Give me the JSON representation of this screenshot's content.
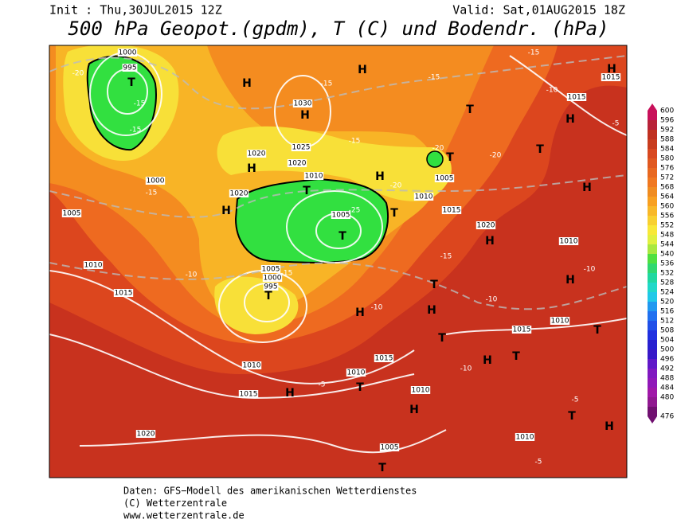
{
  "header": {
    "init": "Init : Thu,30JUL2015 12Z",
    "valid": "Valid: Sat,01AUG2015 18Z",
    "title": "500 hPa Geopot.(gpdm), T (C) und Bodendr. (hPa)"
  },
  "legend": {
    "levels": [
      600,
      596,
      592,
      588,
      584,
      580,
      576,
      572,
      568,
      564,
      560,
      556,
      552,
      548,
      544,
      540,
      536,
      532,
      528,
      524,
      520,
      516,
      512,
      508,
      504,
      500,
      496,
      492,
      488,
      484,
      480,
      476
    ]
  },
  "map": {
    "labels": [
      "1000",
      "995",
      "T",
      "-15",
      "-15",
      "-20",
      "H",
      "H",
      "1030",
      "H",
      "-15",
      "-15",
      "1025",
      "1020",
      "H",
      "1020",
      "1010",
      "T",
      "1020",
      "H",
      "1005",
      "T",
      "-25",
      "H",
      "-20",
      "1010",
      "1005",
      "T",
      "T",
      "-20",
      "-20",
      "T",
      "1015",
      "1020",
      "H",
      "-15",
      "1005",
      "1000",
      "995",
      "T",
      "-15",
      "-10",
      "1010",
      "1015",
      "1005",
      "1000",
      "-15",
      "T",
      "H",
      "-10",
      "H",
      "T",
      "1015",
      "1010",
      "T",
      "1010",
      "1015",
      "H",
      "-5",
      "1020",
      "1005",
      "T",
      "H",
      "T",
      "1015",
      "1010",
      "H",
      "T",
      "H",
      "T",
      "1015",
      "H",
      "1015",
      "-10",
      "-5",
      "H",
      "1010",
      "-10",
      "T",
      "H",
      "1010",
      "-5",
      "-5",
      "-10",
      "1010",
      "H",
      "-15",
      "-15",
      "-10"
    ]
  },
  "footer": [
    "Daten: GFS−Modell des amerikanischen Wetterdienstes",
    "(C) Wetterzentrale",
    "www.wetterzentrale.de"
  ]
}
